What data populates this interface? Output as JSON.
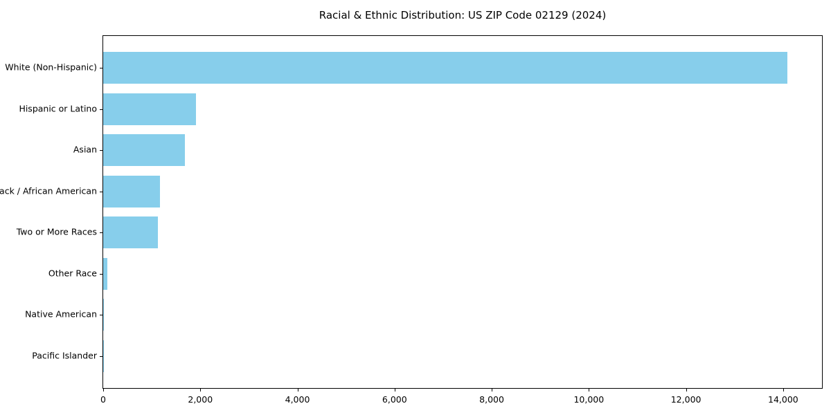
{
  "title": "Racial & Ethnic Distribution: US ZIP Code 02129 (2024)",
  "colors": {
    "bar": "#87CEEB",
    "axis": "#000000",
    "background": "#FFFFFF",
    "text": "#000000"
  },
  "chart_data": {
    "type": "bar",
    "orientation": "horizontal",
    "title": "Racial & Ethnic Distribution: US ZIP Code 02129 (2024)",
    "categories": [
      "White (Non-Hispanic)",
      "Hispanic or Latino",
      "Asian",
      "Black / African American",
      "Two or More Races",
      "Other Race",
      "Native American",
      "Pacific Islander"
    ],
    "values": [
      14080,
      1910,
      1680,
      1170,
      1130,
      85,
      15,
      5
    ],
    "xlabel": "",
    "ylabel": "",
    "xlim": [
      0,
      14800
    ],
    "x_ticks": [
      0,
      2000,
      4000,
      6000,
      8000,
      10000,
      12000,
      14000
    ],
    "x_tick_labels": [
      "0",
      "2,000",
      "4,000",
      "6,000",
      "8,000",
      "10,000",
      "12,000",
      "14,000"
    ],
    "bar_color": "#87CEEB",
    "grid": false,
    "legend": false
  }
}
